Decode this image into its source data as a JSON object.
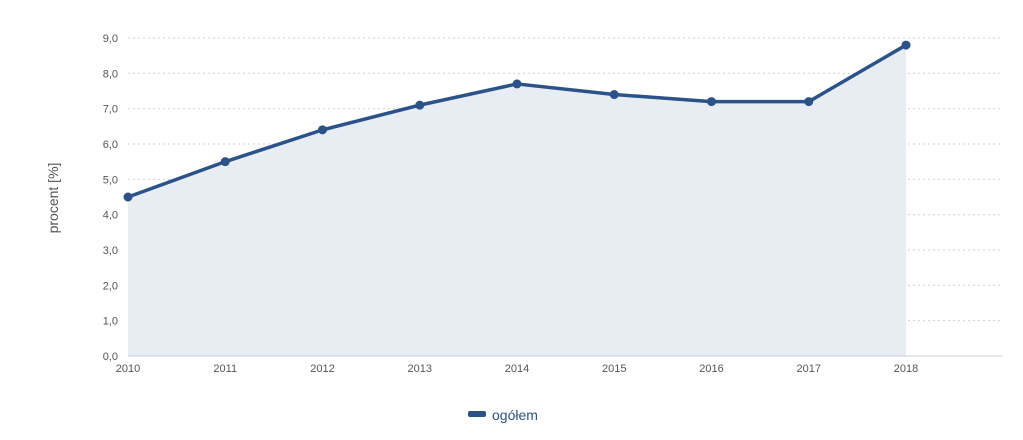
{
  "chart_data": {
    "type": "area",
    "title": "",
    "xlabel": "",
    "ylabel": "procent [%]",
    "x": [
      "2010",
      "2011",
      "2012",
      "2013",
      "2014",
      "2015",
      "2016",
      "2017",
      "2018"
    ],
    "series": [
      {
        "name": "ogółem",
        "values": [
          4.5,
          5.5,
          6.4,
          7.1,
          7.7,
          7.4,
          7.2,
          7.2,
          8.8
        ]
      }
    ],
    "ylim": [
      0,
      9
    ],
    "yticks": [
      "0,0",
      "1,0",
      "2,0",
      "3,0",
      "4,0",
      "5,0",
      "6,0",
      "7,0",
      "8,0",
      "9,0"
    ],
    "grid": true,
    "legend_position": "bottom-center",
    "colors": {
      "line": "#2b5289",
      "fill": "#e8edf3",
      "grid": "#d0d0d0",
      "axis": "#c8d0da"
    }
  }
}
